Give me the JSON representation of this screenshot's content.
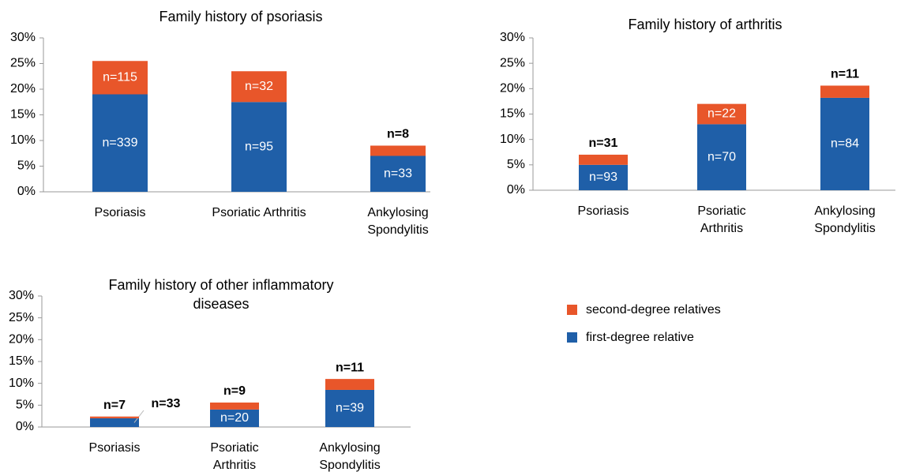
{
  "legend": {
    "entries": [
      {
        "name": "second-degree relatives",
        "color": "#e8562a"
      },
      {
        "name": "first-degree relative",
        "color": "#1f5fa8"
      }
    ]
  },
  "chart_data": [
    {
      "type": "stacked_bar",
      "title": [
        "Family history of psoriasis"
      ],
      "categories": [
        [
          "Psoriasis"
        ],
        [
          "Psoriatic Arthritis"
        ],
        [
          "Ankylosing",
          "Spondylitis"
        ]
      ],
      "series": [
        {
          "values": [
            19,
            17.5,
            7
          ],
          "bar_labels": [
            "n=339",
            "n=95",
            "n=33"
          ]
        },
        {
          "values": [
            6.5,
            6,
            2
          ],
          "bar_labels": [
            "n=115",
            "n=32",
            "n=8"
          ]
        }
      ],
      "ylim": [
        0,
        30
      ],
      "yticks": [
        {
          "value": 0,
          "label": "0%"
        },
        {
          "value": 5,
          "label": "5%"
        },
        {
          "value": 10,
          "label": "10%"
        },
        {
          "value": 15,
          "label": "15%"
        },
        {
          "value": 20,
          "label": "20%"
        },
        {
          "value": 25,
          "label": "25%"
        },
        {
          "value": 30,
          "label": "30%"
        }
      ]
    },
    {
      "type": "stacked_bar",
      "title": [
        "Family history of arthritis"
      ],
      "categories": [
        [
          "Psoriasis"
        ],
        [
          "Psoriatic",
          "Arthritis"
        ],
        [
          "Ankylosing",
          "Spondylitis"
        ]
      ],
      "series": [
        {
          "values": [
            5,
            13,
            18.2
          ],
          "bar_labels": [
            "n=93",
            "n=70",
            "n=84"
          ]
        },
        {
          "values": [
            2,
            4,
            2.4
          ],
          "bar_labels": [
            "n=31",
            "n=22",
            "n=11"
          ]
        }
      ],
      "ylim": [
        0,
        30
      ],
      "yticks": [
        {
          "value": 0,
          "label": "0%"
        },
        {
          "value": 5,
          "label": "5%"
        },
        {
          "value": 10,
          "label": "10%"
        },
        {
          "value": 15,
          "label": "15%"
        },
        {
          "value": 20,
          "label": "20%"
        },
        {
          "value": 25,
          "label": "25%"
        },
        {
          "value": 30,
          "label": "30%"
        }
      ]
    },
    {
      "type": "stacked_bar",
      "title": [
        "Family history of other inflammatory",
        "diseases"
      ],
      "categories": [
        [
          "Psoriasis"
        ],
        [
          "Psoriatic",
          "Arthritis"
        ],
        [
          "Ankylosing",
          "Spondylitis"
        ]
      ],
      "series": [
        {
          "values": [
            2,
            4,
            8.5
          ],
          "bar_labels": [
            "n=33",
            "n=20",
            "n=39"
          ]
        },
        {
          "values": [
            0.4,
            1.6,
            2.5
          ],
          "bar_labels": [
            "n=7",
            "n=9",
            "n=11"
          ]
        }
      ],
      "ylim": [
        0,
        30
      ],
      "yticks": [
        {
          "value": 0,
          "label": "0%"
        },
        {
          "value": 5,
          "label": "5%"
        },
        {
          "value": 10,
          "label": "10%"
        },
        {
          "value": 15,
          "label": "15%"
        },
        {
          "value": 20,
          "label": "20%"
        },
        {
          "value": 25,
          "label": "25%"
        },
        {
          "value": 30,
          "label": "30%"
        }
      ]
    }
  ]
}
